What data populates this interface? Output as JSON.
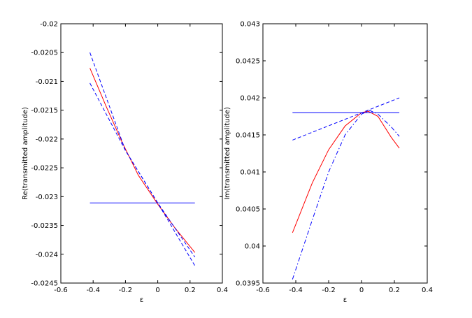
{
  "chart_data": [
    {
      "type": "line",
      "title": "",
      "xlabel": "ε",
      "ylabel": "Re(transmitted amplitude)",
      "xlim": [
        -0.6,
        0.4
      ],
      "ylim": [
        -0.0245,
        -0.02
      ],
      "xticks": [
        -0.6,
        -0.4,
        -0.2,
        0,
        0.2,
        0.4
      ],
      "xtick_labels": [
        "-0.6",
        "-0.4",
        "-0.2",
        "0",
        "0.2",
        "0.4"
      ],
      "yticks": [
        -0.0245,
        -0.024,
        -0.0235,
        -0.023,
        -0.0225,
        -0.022,
        -0.0215,
        -0.021,
        -0.0205,
        -0.02
      ],
      "ytick_labels": [
        "-0.0245",
        "-0.024",
        "-0.0235",
        "-0.023",
        "-0.0225",
        "-0.022",
        "-0.0215",
        "-0.021",
        "-0.0205",
        "-0.02"
      ],
      "grid": false,
      "series": [
        {
          "color": "#ff0000",
          "dash": "solid",
          "x": [
            -0.42,
            -0.32,
            -0.22,
            -0.12,
            0,
            0.1,
            0.23
          ],
          "y": [
            -0.02077,
            -0.02143,
            -0.02206,
            -0.02263,
            -0.02313,
            -0.02352,
            -0.02397
          ]
        },
        {
          "color": "#0000ff",
          "dash": "dashed",
          "x": [
            -0.42,
            -0.2,
            0,
            0.23
          ],
          "y": [
            -0.0205,
            -0.0222,
            -0.02311,
            -0.02405
          ]
        },
        {
          "color": "#0000ff",
          "dash": "dashed",
          "x": [
            -0.42,
            -0.2,
            0,
            0.23
          ],
          "y": [
            -0.02103,
            -0.0222,
            -0.02311,
            -0.0242
          ]
        },
        {
          "color": "#0000ff",
          "dash": "solid",
          "x": [
            -0.42,
            0.23
          ],
          "y": [
            -0.02311,
            -0.02311
          ]
        }
      ]
    },
    {
      "type": "line",
      "title": "",
      "xlabel": "ε",
      "ylabel": "Im(transmitted amplitude)",
      "xlim": [
        -0.6,
        0.4
      ],
      "ylim": [
        0.0395,
        0.043
      ],
      "xticks": [
        -0.6,
        -0.4,
        -0.2,
        0,
        0.2,
        0.4
      ],
      "xtick_labels": [
        "-0.6",
        "-0.4",
        "-0.2",
        "0",
        "0.2",
        "0.4"
      ],
      "yticks": [
        0.0395,
        0.04,
        0.0405,
        0.041,
        0.0415,
        0.042,
        0.0425,
        0.043
      ],
      "ytick_labels": [
        "0.0395",
        "0.04",
        "0.0405",
        "0.041",
        "0.0415",
        "0.042",
        "0.0425",
        "0.043"
      ],
      "grid": false,
      "series": [
        {
          "color": "#ff0000",
          "dash": "solid",
          "x": [
            -0.42,
            -0.3,
            -0.2,
            -0.1,
            0,
            0.04,
            0.1,
            0.18,
            0.23
          ],
          "y": [
            0.04018,
            0.04085,
            0.0413,
            0.04162,
            0.0418,
            0.04182,
            0.04175,
            0.04147,
            0.04132
          ]
        },
        {
          "color": "#0000ff",
          "dash": "dashdot",
          "x": [
            -0.42,
            -0.3,
            -0.2,
            -0.1,
            0,
            0.05,
            0.1,
            0.18,
            0.23
          ],
          "y": [
            0.03955,
            0.04035,
            0.041,
            0.0415,
            0.04178,
            0.04183,
            0.04178,
            0.04161,
            0.04148
          ]
        },
        {
          "color": "#0000ff",
          "dash": "dashed",
          "x": [
            -0.42,
            0.23
          ],
          "y": [
            0.04143,
            0.042
          ]
        },
        {
          "color": "#0000ff",
          "dash": "solid",
          "x": [
            -0.42,
            0.23
          ],
          "y": [
            0.0418,
            0.0418
          ]
        }
      ]
    }
  ]
}
